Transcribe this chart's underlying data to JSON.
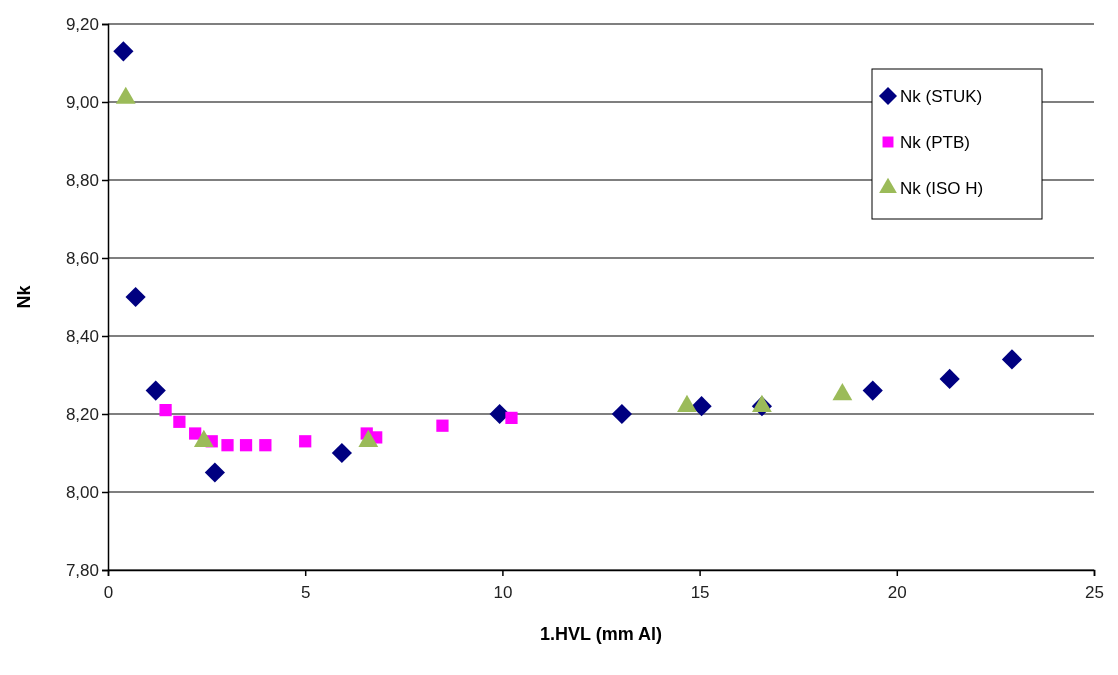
{
  "chart_data": {
    "type": "scatter",
    "xlabel": "1.HVL (mm Al)",
    "ylabel": "Nk",
    "xlim": [
      0,
      25
    ],
    "xticks": [
      0,
      5,
      10,
      15,
      20,
      25
    ],
    "ylim": [
      7.8,
      9.2
    ],
    "yticks": [
      {
        "value": 7.8,
        "label": "7,80"
      },
      {
        "value": 8.0,
        "label": "8,00"
      },
      {
        "value": 8.2,
        "label": "8,20"
      },
      {
        "value": 8.4,
        "label": "8,40"
      },
      {
        "value": 8.6,
        "label": "8,60"
      },
      {
        "value": 8.8,
        "label": "8,80"
      },
      {
        "value": 9.0,
        "label": "9,00"
      },
      {
        "value": 9.2,
        "label": "9,20"
      }
    ],
    "grid": "y",
    "legend": "top right",
    "series": [
      {
        "name": "Nk (STUK)",
        "color": "#000080",
        "marker": "diamond",
        "x": [
          0.39,
          0.7,
          1.21,
          2.71,
          5.93,
          9.93,
          13.03,
          15.05,
          16.58,
          19.39,
          21.34,
          22.92
        ],
        "values": [
          9.13,
          8.5,
          8.26,
          8.05,
          8.1,
          8.2,
          8.2,
          8.22,
          8.22,
          8.26,
          8.29,
          8.34
        ]
      },
      {
        "name": "Nk (PTB)",
        "color": "#ff00ff",
        "marker": "square",
        "x": [
          1.46,
          1.81,
          2.21,
          2.63,
          3.03,
          3.5,
          3.99,
          5.0,
          6.56,
          6.8,
          8.48,
          10.23
        ],
        "values": [
          8.21,
          8.18,
          8.15,
          8.13,
          8.12,
          8.12,
          8.12,
          8.13,
          8.15,
          8.14,
          8.17,
          8.19
        ]
      },
      {
        "name": "Nk (ISO  H)",
        "color": "#9bbb59",
        "marker": "triangle",
        "x": [
          0.45,
          2.43,
          6.6,
          14.68,
          16.58,
          18.62
        ],
        "values": [
          9.01,
          8.13,
          8.13,
          8.22,
          8.22,
          8.25
        ]
      }
    ]
  }
}
